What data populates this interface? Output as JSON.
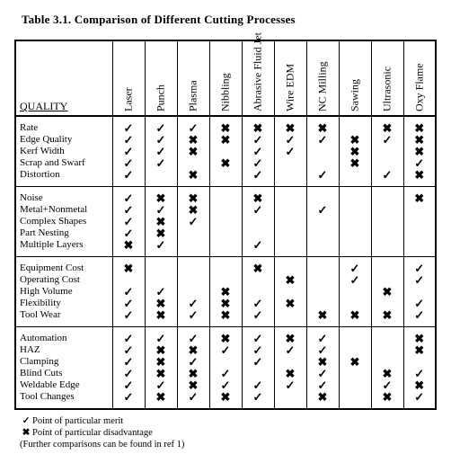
{
  "title": "Table 3.1.  Comparison of Different Cutting Processes",
  "header": {
    "quality": "QUALITY",
    "processes": [
      "Laser",
      "Punch",
      "Plasma",
      "Nibbling",
      "Abrasive Fluid Jet",
      "Wire EDM",
      "NC Milling",
      "Sawing",
      "Ultrasonic",
      "Oxy Flame"
    ]
  },
  "symbols": {
    "merit": "✓",
    "demerit": "✖",
    "blank": ""
  },
  "groups": [
    {
      "rows": [
        {
          "label": "Rate",
          "cells": [
            "m",
            "m",
            "m",
            "d",
            "d",
            "d",
            "d",
            "",
            "d",
            "d"
          ]
        },
        {
          "label": "Edge Quality",
          "cells": [
            "m",
            "m",
            "d",
            "d",
            "m",
            "m",
            "m",
            "d",
            "m",
            "d"
          ]
        },
        {
          "label": "Kerf Width",
          "cells": [
            "m",
            "m",
            "d",
            "",
            "m",
            "m",
            "",
            "d",
            "",
            "d"
          ]
        },
        {
          "label": "Scrap and Swarf",
          "cells": [
            "m",
            "m",
            "",
            "d",
            "m",
            "",
            "",
            "d",
            "",
            "m"
          ]
        },
        {
          "label": "Distortion",
          "cells": [
            "m",
            "",
            "d",
            "",
            "m",
            "",
            "m",
            "",
            "m",
            "d"
          ]
        }
      ]
    },
    {
      "rows": [
        {
          "label": "Noise",
          "cells": [
            "m",
            "d",
            "d",
            "",
            "d",
            "",
            "",
            "",
            "",
            "d"
          ]
        },
        {
          "label": "Metal+Nonmetal",
          "cells": [
            "m",
            "m",
            "d",
            "",
            "m",
            "",
            "m",
            "",
            "",
            ""
          ]
        },
        {
          "label": "Complex Shapes",
          "cells": [
            "m",
            "d",
            "m",
            "",
            "",
            "",
            "",
            "",
            "",
            ""
          ]
        },
        {
          "label": "Part Nesting",
          "cells": [
            "m",
            "d",
            "",
            "",
            "",
            "",
            "",
            "",
            "",
            ""
          ]
        },
        {
          "label": "Multiple Layers",
          "cells": [
            "d",
            "m",
            "",
            "",
            "m",
            "",
            "",
            "",
            "",
            ""
          ]
        }
      ]
    },
    {
      "rows": [
        {
          "label": "Equipment Cost",
          "cells": [
            "d",
            "",
            "",
            "",
            "d",
            "",
            "",
            "m",
            "",
            "m"
          ]
        },
        {
          "label": "Operating Cost",
          "cells": [
            "",
            "",
            "",
            "",
            "",
            "d",
            "",
            "m",
            "",
            "m"
          ]
        },
        {
          "label": "High Volume",
          "cells": [
            "m",
            "m",
            "",
            "d",
            "",
            "",
            "",
            "",
            "d",
            ""
          ]
        },
        {
          "label": "Flexibility",
          "cells": [
            "m",
            "d",
            "m",
            "d",
            "m",
            "d",
            "",
            "",
            "",
            "m"
          ]
        },
        {
          "label": "Tool Wear",
          "cells": [
            "m",
            "d",
            "m",
            "d",
            "m",
            "",
            "d",
            "d",
            "d",
            "m"
          ]
        }
      ]
    },
    {
      "rows": [
        {
          "label": "Automation",
          "cells": [
            "m",
            "m",
            "m",
            "d",
            "m",
            "d",
            "m",
            "",
            "",
            "d"
          ]
        },
        {
          "label": "HAZ",
          "cells": [
            "m",
            "d",
            "d",
            "m",
            "m",
            "m",
            "m",
            "",
            "",
            "d"
          ]
        },
        {
          "label": "Clamping",
          "cells": [
            "m",
            "d",
            "m",
            "",
            "m",
            "",
            "d",
            "d",
            "",
            ""
          ]
        },
        {
          "label": "Blind Cuts",
          "cells": [
            "m",
            "d",
            "d",
            "m",
            "",
            "d",
            "m",
            "",
            "d",
            "m"
          ]
        },
        {
          "label": "Weldable Edge",
          "cells": [
            "m",
            "m",
            "d",
            "m",
            "m",
            "m",
            "m",
            "",
            "m",
            "d"
          ]
        },
        {
          "label": "Tool Changes",
          "cells": [
            "m",
            "d",
            "m",
            "d",
            "m",
            "",
            "d",
            "",
            "d",
            "m"
          ]
        }
      ]
    }
  ],
  "legend": {
    "merit": "Point of particular merit",
    "demerit": "Point of particular disadvantage",
    "note": "(Further comparisons can be found in ref 1)"
  }
}
